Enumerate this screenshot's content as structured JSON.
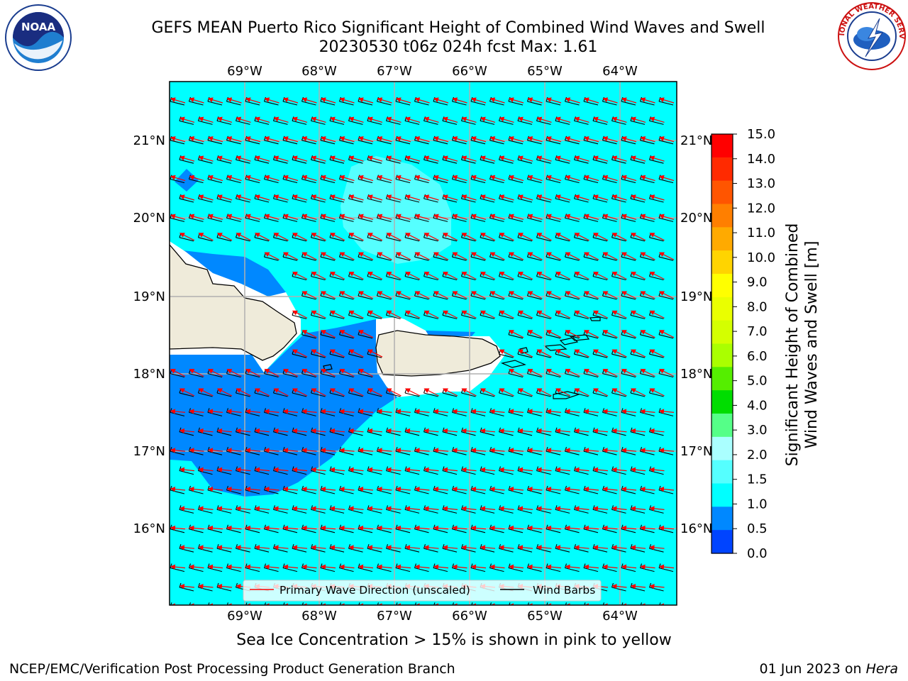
{
  "header": {
    "title_line1": "GEFS MEAN Puerto Rico Significant Height of Combined Wind Waves and Swell",
    "title_line2": "20230530 t06z 024h fcst   Max: 1.61"
  },
  "logos": {
    "left_name": "NOAA",
    "right_name": "NATIONAL WEATHER SERVICE"
  },
  "map": {
    "lon_labels": [
      "69°W",
      "68°W",
      "67°W",
      "66°W",
      "65°W",
      "64°W"
    ],
    "lat_labels": [
      "21°N",
      "20°N",
      "19°N",
      "18°N",
      "17°N",
      "16°N"
    ],
    "legend": {
      "wave_label": "Primary Wave Direction (unscaled)",
      "barb_label": "Wind Barbs"
    }
  },
  "colorbar": {
    "label_line1": "Significant Height of Combined",
    "label_line2": "Wind Waves and Swell [m]",
    "ticks": [
      "15.0",
      "14.0",
      "13.0",
      "12.0",
      "11.0",
      "10.0",
      "9.0",
      "8.0",
      "7.0",
      "6.0",
      "5.0",
      "4.0",
      "3.0",
      "2.0",
      "1.5",
      "1.0",
      "0.5",
      "0.0"
    ],
    "colors": [
      "#ff0000",
      "#ff2a00",
      "#ff5500",
      "#ff7f00",
      "#ffaa00",
      "#ffd400",
      "#ffff00",
      "#eaff00",
      "#d4ff00",
      "#aaff00",
      "#55ee00",
      "#00dd00",
      "#55ff88",
      "#aaffff",
      "#55ffff",
      "#00ffff",
      "#0088ff",
      "#0044ff",
      "#0000ff"
    ]
  },
  "footer": {
    "sea_ice_note": "Sea Ice Concentration > 15% is shown in pink to yellow",
    "credit_left": "NCEP/EMC/Verification Post Processing Product Generation Branch",
    "credit_date": "01 Jun 2023 on",
    "credit_host": "Hera"
  }
}
